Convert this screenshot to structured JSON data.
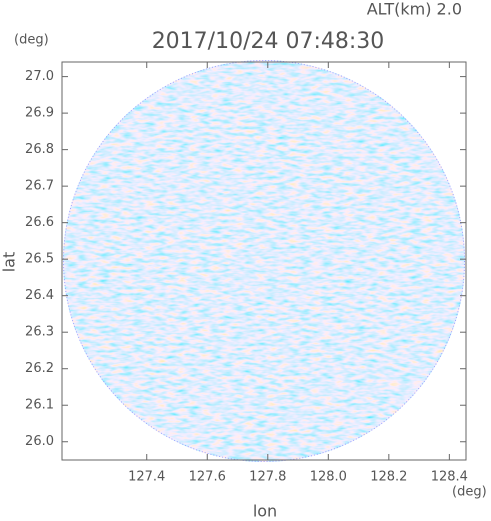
{
  "chart_data": {
    "type": "radar-ppi",
    "title": "2017/10/24 07:48:30",
    "subtitle": "ALT(km) 2.0",
    "xlabel": "lon",
    "ylabel": "lat",
    "xunit": "(deg)",
    "yunit": "(deg)",
    "xlim": [
      127.12,
      128.455
    ],
    "ylim": [
      25.95,
      27.04
    ],
    "xticks": [
      127.4,
      127.6,
      127.8,
      {
        "value": 128,
        "label": "128.0"
      },
      128.2,
      128.4
    ],
    "yticks": [
      {
        "value": 26,
        "label": "26.0"
      },
      26.1,
      26.2,
      26.3,
      26.4,
      26.5,
      26.6,
      26.7,
      26.8,
      26.9,
      {
        "value": 27,
        "label": "27.0"
      }
    ]
  }
}
